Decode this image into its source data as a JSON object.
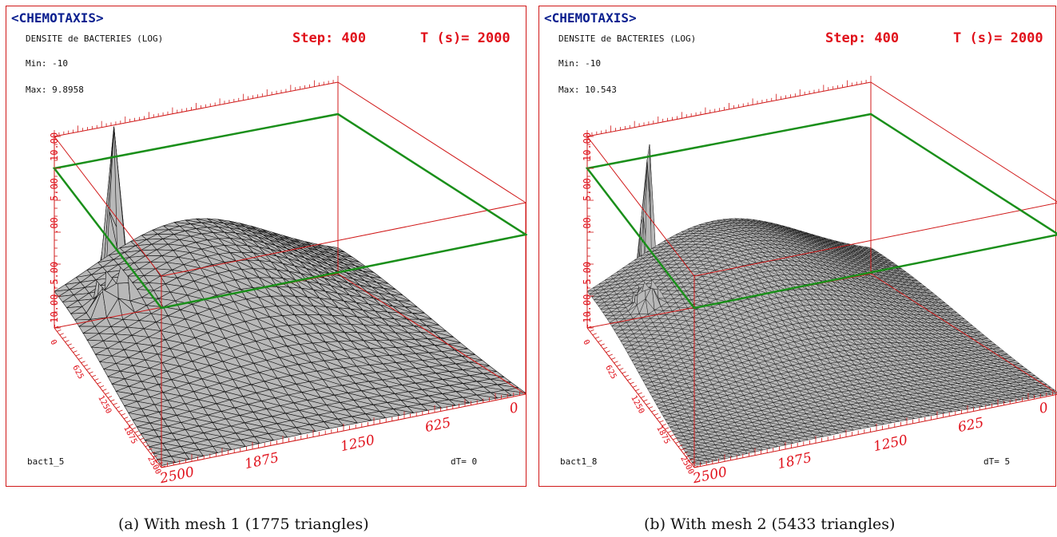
{
  "panels": [
    {
      "app_title": "<CHEMOTAXIS>",
      "plot_title": "DENSITE de BACTERIES (LOG)",
      "step": "Step: 400",
      "time": "T (s)= 2000",
      "min": "Min: -10",
      "max": "Max: 9.8958",
      "file": "bact1_5",
      "dt": "dT= 0",
      "z_ticks": [
        "10.00",
        "5.00",
        ".00",
        "-5.00",
        "-10.00"
      ],
      "x_ticks": [
        "2500",
        "1875",
        "1250",
        "625",
        "0"
      ],
      "y_ticks": [
        "0",
        "625",
        "1250",
        "1875",
        "2500"
      ],
      "caption": "(a) With mesh 1 (1775 triangles)"
    },
    {
      "app_title": "<CHEMOTAXIS>",
      "plot_title": "DENSITE de BACTERIES (LOG)",
      "step": "Step: 400",
      "time": "T (s)= 2000",
      "min": "Min: -10",
      "max": "Max: 10.543",
      "file": "bact1_8",
      "dt": "dT= 5",
      "z_ticks": [
        "10.00",
        "5.00",
        ".00",
        "-5.00",
        "-10.00"
      ],
      "x_ticks": [
        "2500",
        "1875",
        "1250",
        "625",
        "0"
      ],
      "y_ticks": [
        "0",
        "625",
        "1250",
        "1875",
        "2500"
      ],
      "caption": "(b) With mesh 2 (5433 triangles)"
    }
  ],
  "colors": {
    "frame": "#d01818",
    "title": "#0a1f8f",
    "labels": "#e0101a",
    "plane": "#1a8f1a",
    "surface": "#b8b8b8",
    "mesh_lines": "#111111"
  }
}
